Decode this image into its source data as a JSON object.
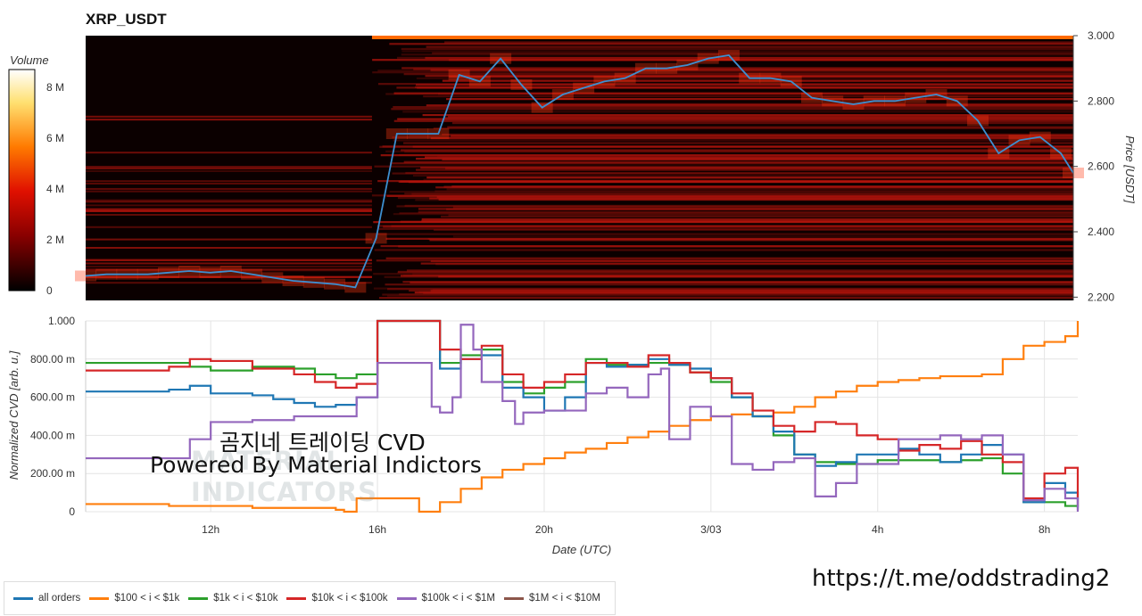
{
  "title": "XRP_USDT",
  "watermark": {
    "title": "곰지네 트레이딩 CVD",
    "subtitle": "Powered By Material Indictors",
    "logo_line1": "MATERIAL",
    "logo_line2": "INDICATORS",
    "url": "https://t.me/oddstrading2"
  },
  "colors": {
    "all_orders": "#1f77b4",
    "s100_1k": "#ff7f0e",
    "s1k_10k": "#2ca02c",
    "s10k_100k": "#d62728",
    "s100k_1m": "#9467bd",
    "s1m_10m": "#8c564b",
    "heat_bg": "#0b0000",
    "heat_mid": "#b3140c",
    "heat_hot": "#ff6a00",
    "price_line": "#3d8fd0"
  },
  "chart_data": [
    {
      "type": "heatmap",
      "title": "XRP_USDT",
      "colorbar": {
        "title": "Volume",
        "ticks": [
          "0",
          "2 M",
          "4 M",
          "6 M",
          "8 M"
        ],
        "range": [
          0,
          8700000
        ]
      },
      "y_axis": {
        "label": "Price [USDT]",
        "ticks": [
          "2.200",
          "2.400",
          "2.600",
          "2.800",
          "3.000"
        ],
        "range": [
          2.19,
          3.0
        ]
      },
      "price_series": {
        "t": [
          0,
          0.5,
          1,
          1.5,
          2,
          2.5,
          3,
          3.5,
          4,
          4.5,
          5,
          5.5,
          6,
          6.5,
          7,
          7.5,
          8,
          8.5,
          9,
          9.5,
          10,
          10.5,
          11,
          11.5,
          12,
          12.5,
          13,
          13.5,
          14,
          14.5,
          15,
          15.5,
          16,
          16.5,
          17,
          17.5,
          18,
          18.5,
          19,
          19.5,
          20,
          20.5,
          21,
          21.5,
          22,
          22.5,
          23,
          23.5,
          23.8
        ],
        "price": [
          2.265,
          2.27,
          2.27,
          2.27,
          2.275,
          2.28,
          2.275,
          2.28,
          2.27,
          2.26,
          2.25,
          2.245,
          2.24,
          2.23,
          2.38,
          2.7,
          2.7,
          2.7,
          2.88,
          2.86,
          2.93,
          2.85,
          2.78,
          2.82,
          2.84,
          2.86,
          2.87,
          2.9,
          2.9,
          2.91,
          2.93,
          2.94,
          2.87,
          2.87,
          2.86,
          2.81,
          2.8,
          2.79,
          2.8,
          2.8,
          2.81,
          2.82,
          2.8,
          2.74,
          2.64,
          2.68,
          2.69,
          2.64,
          2.58
        ]
      },
      "color_scale": "black-red-orange-yellow-white"
    },
    {
      "type": "line",
      "xlabel": "Date (UTC)",
      "ylabel": "Normalized CVD [arb. u.]",
      "x_ticks": [
        "12h",
        "16h",
        "20h",
        "3/03",
        "4h",
        "8h"
      ],
      "y_ticks": [
        "0",
        "200.00 m",
        "400.00 m",
        "600.00 m",
        "800.00 m",
        "1.000"
      ],
      "ylim": [
        0,
        1.0
      ],
      "xlim": [
        0,
        23.8
      ],
      "grid": true,
      "legend_position": "bottom",
      "series": [
        {
          "name": "all orders",
          "x": [
            0,
            1,
            2,
            2.5,
            3,
            4,
            4.5,
            5,
            5.5,
            6,
            6.5,
            7,
            7.5,
            8,
            8.5,
            9,
            9.5,
            10,
            10.5,
            11,
            11.5,
            12,
            12.5,
            13,
            13.5,
            14,
            14.5,
            15,
            15.5,
            16,
            16.5,
            17,
            17.5,
            18,
            18.5,
            19,
            19.5,
            20,
            20.5,
            21,
            21.5,
            22,
            22.5,
            23,
            23.5,
            23.8
          ],
          "y": [
            0.63,
            0.63,
            0.64,
            0.66,
            0.62,
            0.61,
            0.59,
            0.57,
            0.55,
            0.56,
            0.6,
            1.0,
            1.0,
            1.0,
            0.75,
            0.8,
            0.82,
            0.65,
            0.6,
            0.53,
            0.6,
            0.78,
            0.76,
            0.77,
            0.8,
            0.77,
            0.75,
            0.7,
            0.6,
            0.5,
            0.42,
            0.3,
            0.24,
            0.26,
            0.3,
            0.3,
            0.33,
            0.3,
            0.26,
            0.3,
            0.35,
            0.3,
            0.05,
            0.15,
            0.1,
            0.02
          ]
        },
        {
          "name": "$100 < i < $1k",
          "x": [
            0,
            1,
            2,
            3,
            4,
            5,
            6,
            6.2,
            6.5,
            7,
            7.5,
            8,
            8.5,
            9,
            9.5,
            10,
            10.5,
            11,
            11.5,
            12,
            12.5,
            13,
            13.5,
            14,
            14.5,
            15,
            15.5,
            16,
            16.5,
            17,
            17.5,
            18,
            18.5,
            19,
            19.5,
            20,
            20.5,
            21,
            21.5,
            22,
            22.5,
            23,
            23.5,
            23.8
          ],
          "y": [
            0.04,
            0.04,
            0.03,
            0.03,
            0.02,
            0.02,
            0.01,
            0.0,
            0.07,
            0.07,
            0.07,
            0.0,
            0.05,
            0.12,
            0.18,
            0.22,
            0.25,
            0.28,
            0.31,
            0.33,
            0.36,
            0.39,
            0.42,
            0.45,
            0.48,
            0.5,
            0.51,
            0.5,
            0.52,
            0.55,
            0.6,
            0.63,
            0.66,
            0.68,
            0.69,
            0.7,
            0.71,
            0.71,
            0.72,
            0.8,
            0.87,
            0.89,
            0.92,
            1.0
          ]
        },
        {
          "name": "$1k < i < $10k",
          "x": [
            0,
            1,
            2,
            2.5,
            3,
            4,
            5,
            5.5,
            6,
            6.5,
            7,
            7.5,
            8,
            8.5,
            9,
            9.5,
            10,
            10.5,
            11,
            11.5,
            12,
            12.5,
            13,
            13.5,
            14,
            14.5,
            15,
            15.5,
            16,
            16.5,
            17,
            17.5,
            18,
            18.5,
            19,
            19.5,
            20,
            20.5,
            21,
            21.5,
            22,
            22.5,
            23,
            23.5,
            23.8
          ],
          "y": [
            0.78,
            0.78,
            0.78,
            0.76,
            0.74,
            0.76,
            0.75,
            0.72,
            0.7,
            0.72,
            1.0,
            1.0,
            1.0,
            0.78,
            0.82,
            0.85,
            0.68,
            0.62,
            0.65,
            0.68,
            0.8,
            0.77,
            0.77,
            0.78,
            0.77,
            0.73,
            0.68,
            0.6,
            0.5,
            0.4,
            0.3,
            0.26,
            0.25,
            0.25,
            0.27,
            0.27,
            0.27,
            0.26,
            0.27,
            0.28,
            0.2,
            0.05,
            0.05,
            0.03,
            0.01
          ]
        },
        {
          "name": "$10k < i < $100k",
          "x": [
            0,
            1,
            2,
            2.5,
            3,
            4,
            5,
            5.5,
            6,
            6.5,
            7,
            7.5,
            8,
            8.5,
            9,
            9.5,
            10,
            10.5,
            11,
            11.5,
            12,
            12.5,
            13,
            13.5,
            14,
            14.5,
            15,
            15.5,
            16,
            16.5,
            17,
            17.5,
            18,
            18.5,
            19,
            19.5,
            20,
            20.5,
            21,
            21.5,
            22,
            22.5,
            23,
            23.5,
            23.8
          ],
          "y": [
            0.74,
            0.74,
            0.76,
            0.8,
            0.79,
            0.75,
            0.72,
            0.68,
            0.65,
            0.67,
            1.0,
            1.0,
            1.0,
            0.85,
            0.8,
            0.87,
            0.72,
            0.65,
            0.68,
            0.72,
            0.78,
            0.78,
            0.76,
            0.82,
            0.78,
            0.73,
            0.7,
            0.62,
            0.53,
            0.45,
            0.42,
            0.47,
            0.46,
            0.4,
            0.38,
            0.32,
            0.35,
            0.33,
            0.37,
            0.3,
            0.26,
            0.07,
            0.2,
            0.23,
            0.03
          ]
        },
        {
          "name": "$100k < i < $1M",
          "x": [
            0,
            1,
            2,
            2.5,
            3,
            4,
            5,
            6,
            6.5,
            6.8,
            7,
            7.5,
            7.8,
            8,
            8.3,
            8.5,
            8.8,
            9,
            9.3,
            9.5,
            10,
            10.3,
            10.5,
            11,
            11.5,
            12,
            12.5,
            13,
            13.5,
            13.8,
            14,
            14.5,
            15,
            15.5,
            16,
            16.5,
            17,
            17.5,
            18,
            18.5,
            19,
            19.5,
            20,
            20.5,
            21,
            21.5,
            22,
            22.5,
            23,
            23.5,
            23.8
          ],
          "y": [
            0.28,
            0.28,
            0.28,
            0.38,
            0.47,
            0.48,
            0.5,
            0.5,
            0.6,
            0.6,
            0.78,
            0.78,
            0.78,
            0.78,
            0.55,
            0.52,
            0.6,
            0.98,
            0.85,
            0.68,
            0.58,
            0.46,
            0.52,
            0.53,
            0.53,
            0.62,
            0.65,
            0.6,
            0.72,
            0.75,
            0.38,
            0.55,
            0.5,
            0.25,
            0.22,
            0.26,
            0.28,
            0.08,
            0.15,
            0.25,
            0.25,
            0.38,
            0.38,
            0.4,
            0.38,
            0.4,
            0.3,
            0.06,
            0.12,
            0.07,
            0.0
          ]
        },
        {
          "name": "$1M < i < $10M",
          "x": [],
          "y": []
        }
      ]
    }
  ]
}
